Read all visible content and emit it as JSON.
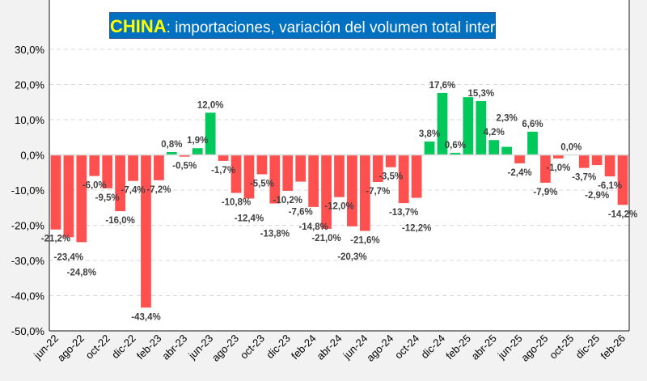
{
  "chart_data": {
    "type": "bar",
    "title_highlight": "CHINA",
    "title_rest": ": importaciones, variación del volumen total interanual",
    "xlabel": "",
    "ylabel": "",
    "ylim": [
      -50,
      30
    ],
    "yticks": [
      30,
      20,
      10,
      0,
      -10,
      -20,
      -30,
      -40,
      -50
    ],
    "ytick_labels": [
      "30,0%",
      "20,0%",
      "10,0%",
      "0,0%",
      "-10,0%",
      "-20,0%",
      "-30,0%",
      "-40,0%",
      "-50,0%"
    ],
    "grid": true,
    "categories": [
      "jun-22",
      "jul-22",
      "ago-22",
      "sep-22",
      "oct-22",
      "nov-22",
      "dic-22",
      "ene-23",
      "feb-23",
      "mar-23",
      "abr-23",
      "may-23",
      "jun-23",
      "jul-23",
      "ago-23",
      "sep-23",
      "oct-23",
      "nov-23",
      "dic-23",
      "ene-24",
      "feb-24",
      "mar-24",
      "abr-24",
      "may-24",
      "jun-24",
      "jul-24",
      "ago-24",
      "sep-24",
      "oct-24",
      "nov-24",
      "dic-24",
      "ene-25",
      "feb-25",
      "mar-25",
      "abr-25",
      "may-25",
      "jun-25",
      "jul-25",
      "ago-25",
      "sep-25",
      "oct-25",
      "nov-25",
      "dic-25",
      "ene-26",
      "feb-26"
    ],
    "xtick_labels_shown": [
      "jun-22",
      "ago-22",
      "oct-22",
      "dic-22",
      "feb-23",
      "abr-23",
      "jun-23",
      "ago-23",
      "oct-23",
      "dic-23",
      "feb-24",
      "abr-24",
      "jun-24",
      "ago-24",
      "oct-24",
      "dic-24",
      "feb-25",
      "abr-25",
      "jun-25",
      "ago-25",
      "oct-25",
      "dic-25",
      "feb-26"
    ],
    "values": [
      -21.2,
      -23.4,
      -24.8,
      -6.0,
      -9.5,
      -16.0,
      -7.4,
      -43.4,
      -7.2,
      0.8,
      -0.5,
      1.9,
      12.0,
      -1.7,
      -10.8,
      -12.4,
      -5.5,
      -13.8,
      -10.2,
      -7.6,
      -14.8,
      -21.0,
      -12.0,
      -20.3,
      -21.6,
      -7.7,
      -3.5,
      -13.7,
      -12.2,
      3.8,
      17.6,
      0.6,
      16.4,
      15.3,
      4.2,
      2.3,
      -2.4,
      6.6,
      -7.9,
      -1.0,
      0.0,
      -3.7,
      -2.9,
      -6.1,
      -14.2
    ],
    "data_labels": [
      "-21,2%",
      "-23,4%",
      "-24,8%",
      "-6,0%",
      "-9,5%",
      "-16,0%",
      "-7,4%",
      "-43,4%",
      "-7,2%",
      "0,8%",
      "-0,5%",
      "1,9%",
      "12,0%",
      "-1,7%",
      "-10,8%",
      "-12,4%",
      "-5,5%",
      "-13,8%",
      "-10,2%",
      "-7,6%",
      "-14,8%",
      "-21,0%",
      "-12,0%",
      "-20,3%",
      "-21,6%",
      "-7,7%",
      "-3,5%",
      "-13,7%",
      "-12,2%",
      "3,8%",
      "17,6%",
      "0,6%",
      null,
      "15,3%",
      "4,2%",
      "2,3%",
      "-2,4%",
      "6,6%",
      "-7,9%",
      "-1,0%",
      "0,0%",
      "-3,7%",
      "-2,9%",
      "-6,1%",
      "-14,2%"
    ],
    "colors": {
      "positive": "#00c85a",
      "negative": "#ff5050",
      "title_bg": "#0070c0",
      "title_highlight": "#ffff00"
    }
  }
}
